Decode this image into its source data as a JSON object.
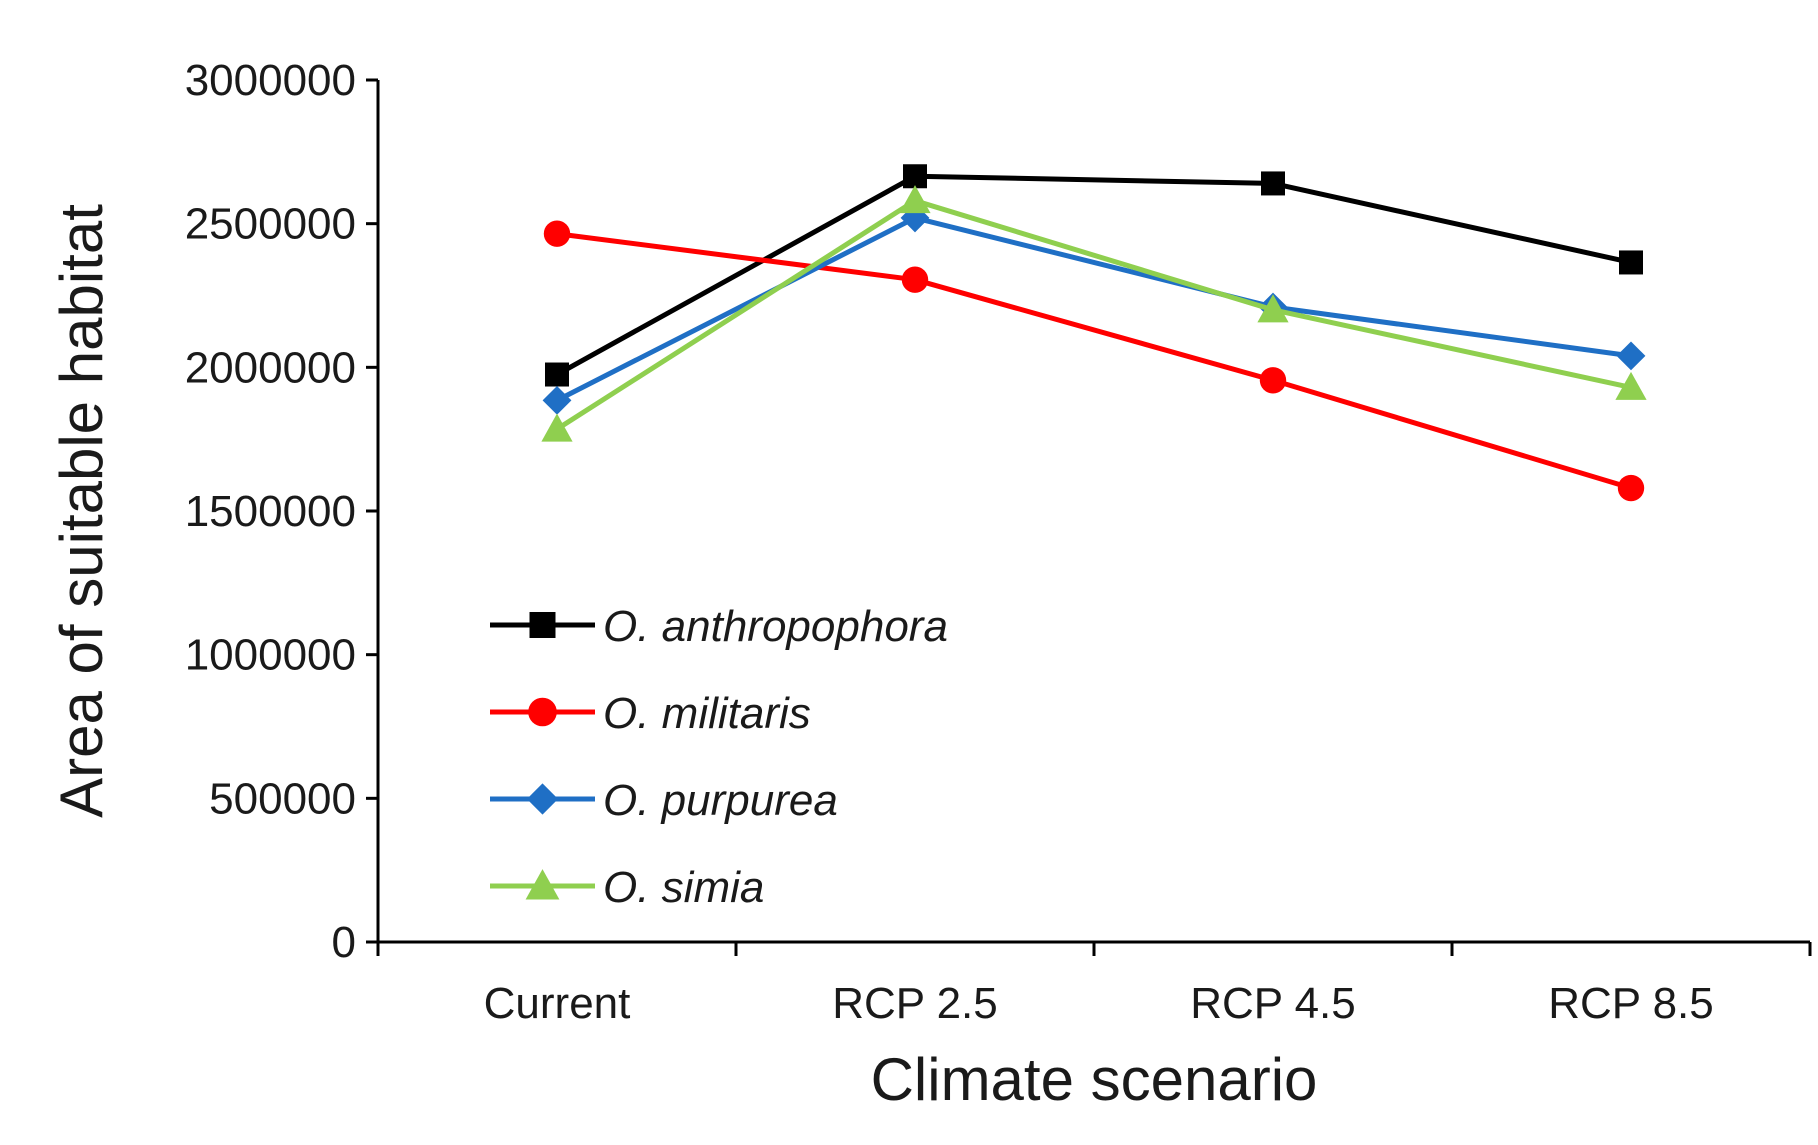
{
  "chart_data": {
    "type": "line",
    "title": "",
    "xlabel": "Climate scenario",
    "ylabel": "Area of suitable habitat",
    "categories": [
      "Current",
      "RCP 2.5",
      "RCP 4.5",
      "RCP 8.5"
    ],
    "ylim": [
      0,
      3000000
    ],
    "yticks": [
      0,
      500000,
      1000000,
      1500000,
      2000000,
      2500000,
      3000000
    ],
    "ytick_labels": [
      "0",
      "500000",
      "1000000",
      "1500000",
      "2000000",
      "2500000",
      "3000000"
    ],
    "grid": false,
    "legend_position": "bottom-left",
    "series": [
      {
        "name": "O. anthropophora",
        "marker": "square",
        "color": "#000000",
        "values": [
          1975000,
          2665000,
          2640000,
          2365000
        ]
      },
      {
        "name": "O. militaris",
        "marker": "circle",
        "color": "#ff0000",
        "values": [
          2465000,
          2305000,
          1955000,
          1580000
        ]
      },
      {
        "name": "O. purpurea",
        "marker": "diamond",
        "color": "#1f6fc5",
        "values": [
          1885000,
          2520000,
          2210000,
          2040000
        ]
      },
      {
        "name": "O. simia",
        "marker": "triangle",
        "color": "#8fcf4f",
        "values": [
          1785000,
          2580000,
          2200000,
          1930000
        ]
      }
    ]
  }
}
